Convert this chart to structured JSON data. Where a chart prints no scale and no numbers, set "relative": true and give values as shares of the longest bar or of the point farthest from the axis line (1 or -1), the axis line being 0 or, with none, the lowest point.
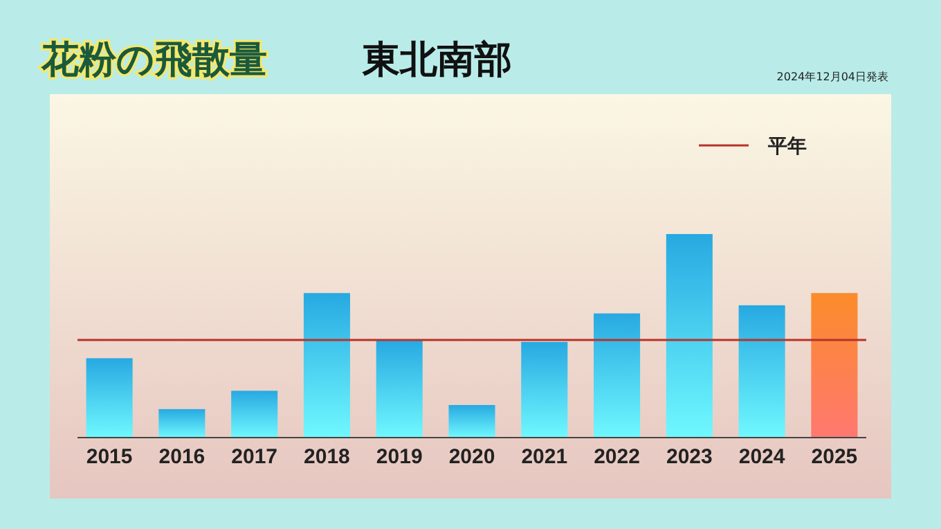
{
  "chart_data": {
    "type": "bar",
    "title": "花粉の飛散量",
    "subtitle": "東北南部",
    "annotations": [
      "2024年12月04日発表"
    ],
    "categories": [
      "2015",
      "2016",
      "2017",
      "2018",
      "2019",
      "2020",
      "2021",
      "2022",
      "2023",
      "2024",
      "2025"
    ],
    "values": [
      0.39,
      0.14,
      0.23,
      0.71,
      0.48,
      0.16,
      0.47,
      0.61,
      1,
      0.65,
      0.71
    ],
    "colors": [
      "#27a9e1",
      "#27a9e1",
      "#27a9e1",
      "#27a9e1",
      "#27a9e1",
      "#27a9e1",
      "#27a9e1",
      "#27a9e1",
      "#27a9e1",
      "#27a9e1",
      "#fb8c2a"
    ],
    "relative": true,
    "ref_lines": [
      {
        "axis": "y",
        "value": 0.48,
        "label": "平年",
        "color": "#b8322a"
      }
    ],
    "legend": "top right"
  }
}
